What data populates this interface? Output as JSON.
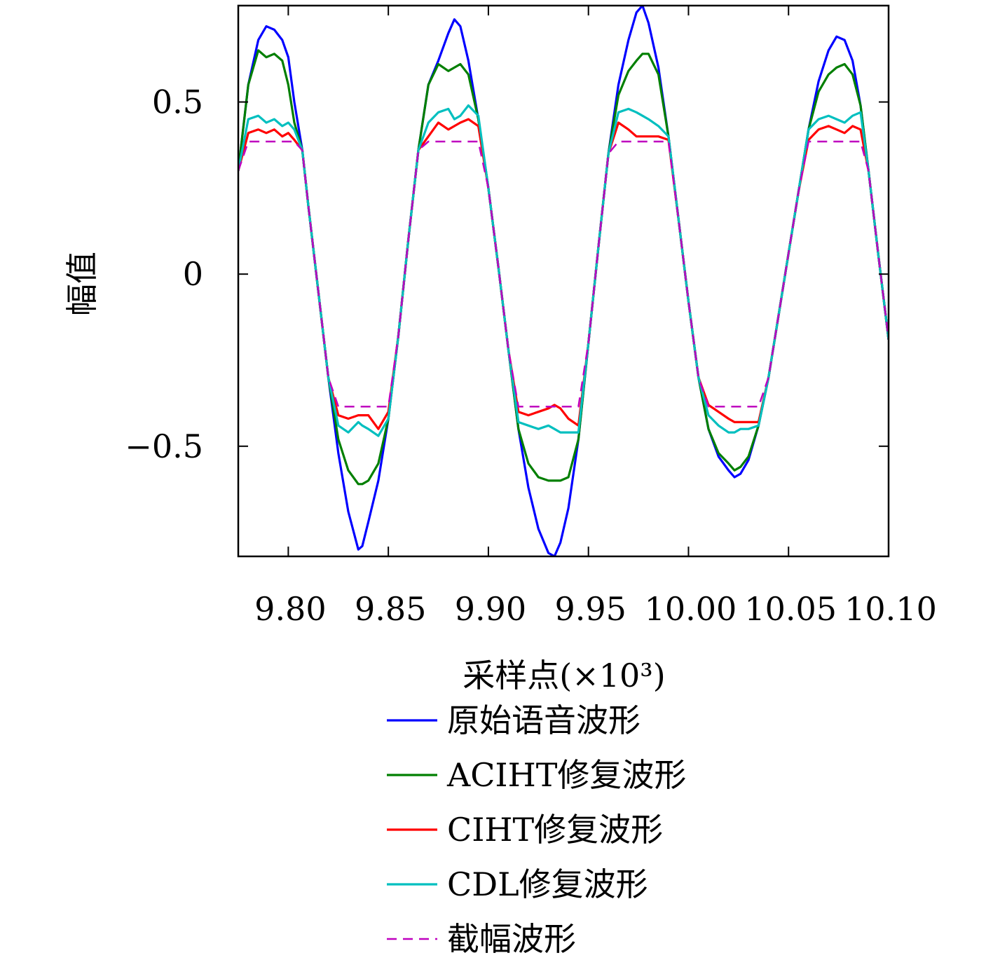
{
  "chart_data": {
    "type": "line",
    "title": "",
    "xlabel": "采样点(×10³)",
    "ylabel": "幅值",
    "xlim": [
      9.775,
      10.1
    ],
    "ylim": [
      -0.82,
      0.78
    ],
    "xticks": [
      "9.80",
      "9.85",
      "9.90",
      "9.95",
      "10.00",
      "10.05",
      "10.10"
    ],
    "xtick_values": [
      9.8,
      9.85,
      9.9,
      9.95,
      10.0,
      10.05,
      10.1
    ],
    "yticks": [
      "−0.5",
      "0",
      "0.5"
    ],
    "ytick_values": [
      -0.5,
      0,
      0.5
    ],
    "grid": false,
    "legend_position": "below",
    "clip_level": 0.385,
    "series": [
      {
        "name": "原始语音波形",
        "color": "#0000ff",
        "style": "solid",
        "x": [
          9.775,
          9.78,
          9.785,
          9.789,
          9.793,
          9.797,
          9.8,
          9.803,
          9.807,
          9.81,
          9.815,
          9.82,
          9.825,
          9.83,
          9.835,
          9.837,
          9.84,
          9.845,
          9.85,
          9.855,
          9.86,
          9.865,
          9.87,
          9.875,
          9.88,
          9.883,
          9.886,
          9.89,
          9.895,
          9.9,
          9.905,
          9.91,
          9.915,
          9.92,
          9.925,
          9.93,
          9.933,
          9.936,
          9.94,
          9.945,
          9.95,
          9.955,
          9.96,
          9.965,
          9.97,
          9.974,
          9.977,
          9.98,
          9.985,
          9.99,
          9.995,
          10.0,
          10.005,
          10.01,
          10.015,
          10.02,
          10.023,
          10.026,
          10.03,
          10.035,
          10.04,
          10.045,
          10.05,
          10.055,
          10.06,
          10.065,
          10.07,
          10.074,
          10.078,
          10.082,
          10.086,
          10.09,
          10.095,
          10.1
        ],
        "y": [
          0.3,
          0.55,
          0.68,
          0.72,
          0.71,
          0.68,
          0.63,
          0.5,
          0.36,
          0.2,
          -0.05,
          -0.3,
          -0.52,
          -0.69,
          -0.8,
          -0.79,
          -0.72,
          -0.6,
          -0.42,
          -0.18,
          0.1,
          0.36,
          0.55,
          0.62,
          0.7,
          0.74,
          0.72,
          0.62,
          0.45,
          0.25,
          0.02,
          -0.22,
          -0.45,
          -0.62,
          -0.74,
          -0.81,
          -0.82,
          -0.78,
          -0.68,
          -0.48,
          -0.2,
          0.08,
          0.35,
          0.55,
          0.68,
          0.76,
          0.78,
          0.73,
          0.6,
          0.4,
          0.16,
          -0.08,
          -0.3,
          -0.45,
          -0.53,
          -0.57,
          -0.59,
          -0.58,
          -0.54,
          -0.44,
          -0.3,
          -0.12,
          0.06,
          0.24,
          0.42,
          0.56,
          0.65,
          0.69,
          0.68,
          0.62,
          0.49,
          0.3,
          0.05,
          -0.19
        ]
      },
      {
        "name": "ACIHT修复波形",
        "color": "#007f00",
        "style": "solid",
        "x": [
          9.775,
          9.78,
          9.785,
          9.789,
          9.793,
          9.797,
          9.8,
          9.803,
          9.807,
          9.81,
          9.815,
          9.82,
          9.825,
          9.83,
          9.835,
          9.837,
          9.84,
          9.845,
          9.85,
          9.855,
          9.86,
          9.865,
          9.87,
          9.875,
          9.88,
          9.883,
          9.886,
          9.89,
          9.895,
          9.9,
          9.905,
          9.91,
          9.915,
          9.92,
          9.925,
          9.93,
          9.933,
          9.936,
          9.94,
          9.945,
          9.95,
          9.955,
          9.96,
          9.965,
          9.97,
          9.974,
          9.977,
          9.98,
          9.985,
          9.99,
          9.995,
          10.0,
          10.005,
          10.01,
          10.015,
          10.02,
          10.023,
          10.026,
          10.03,
          10.035,
          10.04,
          10.045,
          10.05,
          10.055,
          10.06,
          10.065,
          10.07,
          10.074,
          10.078,
          10.082,
          10.086,
          10.09,
          10.095,
          10.1
        ],
        "y": [
          0.3,
          0.55,
          0.65,
          0.63,
          0.64,
          0.62,
          0.55,
          0.44,
          0.36,
          0.2,
          -0.05,
          -0.3,
          -0.48,
          -0.57,
          -0.61,
          -0.61,
          -0.6,
          -0.55,
          -0.42,
          -0.18,
          0.1,
          0.36,
          0.55,
          0.61,
          0.59,
          0.6,
          0.61,
          0.58,
          0.45,
          0.25,
          0.02,
          -0.22,
          -0.45,
          -0.55,
          -0.59,
          -0.6,
          -0.6,
          -0.6,
          -0.59,
          -0.48,
          -0.2,
          0.08,
          0.35,
          0.52,
          0.59,
          0.62,
          0.64,
          0.64,
          0.58,
          0.4,
          0.16,
          -0.08,
          -0.3,
          -0.45,
          -0.52,
          -0.55,
          -0.57,
          -0.56,
          -0.53,
          -0.44,
          -0.3,
          -0.12,
          0.06,
          0.24,
          0.42,
          0.53,
          0.58,
          0.6,
          0.61,
          0.58,
          0.49,
          0.3,
          0.05,
          -0.19
        ]
      },
      {
        "name": "CIHT修复波形",
        "color": "#ff0000",
        "style": "solid",
        "x": [
          9.775,
          9.78,
          9.785,
          9.789,
          9.793,
          9.797,
          9.8,
          9.803,
          9.807,
          9.81,
          9.815,
          9.82,
          9.825,
          9.83,
          9.835,
          9.837,
          9.84,
          9.845,
          9.85,
          9.855,
          9.86,
          9.865,
          9.87,
          9.875,
          9.88,
          9.883,
          9.886,
          9.89,
          9.895,
          9.9,
          9.905,
          9.91,
          9.915,
          9.92,
          9.925,
          9.93,
          9.933,
          9.936,
          9.94,
          9.945,
          9.95,
          9.955,
          9.96,
          9.965,
          9.97,
          9.974,
          9.977,
          9.98,
          9.985,
          9.99,
          9.995,
          10.0,
          10.005,
          10.01,
          10.015,
          10.02,
          10.023,
          10.026,
          10.03,
          10.035,
          10.04,
          10.045,
          10.05,
          10.055,
          10.06,
          10.065,
          10.07,
          10.074,
          10.078,
          10.082,
          10.086,
          10.09,
          10.095,
          10.1
        ],
        "y": [
          0.3,
          0.41,
          0.42,
          0.41,
          0.42,
          0.4,
          0.41,
          0.39,
          0.36,
          0.2,
          -0.05,
          -0.3,
          -0.41,
          -0.42,
          -0.41,
          -0.41,
          -0.41,
          -0.45,
          -0.4,
          -0.18,
          0.1,
          0.36,
          0.4,
          0.44,
          0.42,
          0.43,
          0.44,
          0.45,
          0.43,
          0.25,
          0.02,
          -0.22,
          -0.4,
          -0.41,
          -0.4,
          -0.39,
          -0.38,
          -0.39,
          -0.42,
          -0.44,
          -0.2,
          0.08,
          0.35,
          0.44,
          0.42,
          0.4,
          0.4,
          0.4,
          0.4,
          0.39,
          0.16,
          -0.08,
          -0.3,
          -0.38,
          -0.4,
          -0.42,
          -0.43,
          -0.43,
          -0.43,
          -0.43,
          -0.3,
          -0.12,
          0.06,
          0.24,
          0.39,
          0.42,
          0.43,
          0.42,
          0.41,
          0.43,
          0.42,
          0.3,
          0.05,
          -0.19
        ]
      },
      {
        "name": "CDL修复波形",
        "color": "#00bfbf",
        "style": "solid",
        "x": [
          9.775,
          9.78,
          9.785,
          9.789,
          9.793,
          9.797,
          9.8,
          9.803,
          9.807,
          9.81,
          9.815,
          9.82,
          9.825,
          9.83,
          9.835,
          9.837,
          9.84,
          9.845,
          9.85,
          9.855,
          9.86,
          9.865,
          9.87,
          9.875,
          9.88,
          9.883,
          9.886,
          9.89,
          9.895,
          9.9,
          9.905,
          9.91,
          9.915,
          9.92,
          9.925,
          9.93,
          9.933,
          9.936,
          9.94,
          9.945,
          9.95,
          9.955,
          9.96,
          9.965,
          9.97,
          9.974,
          9.977,
          9.98,
          9.985,
          9.99,
          9.995,
          10.0,
          10.005,
          10.01,
          10.015,
          10.02,
          10.023,
          10.026,
          10.03,
          10.035,
          10.04,
          10.045,
          10.05,
          10.055,
          10.06,
          10.065,
          10.07,
          10.074,
          10.078,
          10.082,
          10.086,
          10.09,
          10.095,
          10.1
        ],
        "y": [
          0.3,
          0.45,
          0.46,
          0.44,
          0.45,
          0.43,
          0.44,
          0.42,
          0.36,
          0.2,
          -0.05,
          -0.3,
          -0.44,
          -0.46,
          -0.43,
          -0.44,
          -0.45,
          -0.47,
          -0.42,
          -0.18,
          0.1,
          0.36,
          0.44,
          0.47,
          0.48,
          0.45,
          0.46,
          0.49,
          0.46,
          0.25,
          0.02,
          -0.22,
          -0.43,
          -0.44,
          -0.45,
          -0.44,
          -0.45,
          -0.46,
          -0.46,
          -0.46,
          -0.2,
          0.08,
          0.35,
          0.47,
          0.48,
          0.47,
          0.46,
          0.45,
          0.43,
          0.4,
          0.16,
          -0.08,
          -0.3,
          -0.41,
          -0.44,
          -0.46,
          -0.46,
          -0.45,
          -0.45,
          -0.44,
          -0.3,
          -0.12,
          0.06,
          0.24,
          0.42,
          0.45,
          0.46,
          0.45,
          0.44,
          0.46,
          0.47,
          0.3,
          0.05,
          -0.19
        ]
      },
      {
        "name": "截幅波形",
        "color": "#bf00bf",
        "style": "dashed",
        "x": [
          9.775,
          9.78,
          9.785,
          9.789,
          9.793,
          9.797,
          9.8,
          9.803,
          9.807,
          9.81,
          9.815,
          9.82,
          9.825,
          9.83,
          9.835,
          9.837,
          9.84,
          9.845,
          9.85,
          9.855,
          9.86,
          9.865,
          9.87,
          9.875,
          9.88,
          9.883,
          9.886,
          9.89,
          9.895,
          9.9,
          9.905,
          9.91,
          9.915,
          9.92,
          9.925,
          9.93,
          9.933,
          9.936,
          9.94,
          9.945,
          9.95,
          9.955,
          9.96,
          9.965,
          9.97,
          9.974,
          9.977,
          9.98,
          9.985,
          9.99,
          9.995,
          10.0,
          10.005,
          10.01,
          10.015,
          10.02,
          10.023,
          10.026,
          10.03,
          10.035,
          10.04,
          10.045,
          10.05,
          10.055,
          10.06,
          10.065,
          10.07,
          10.074,
          10.078,
          10.082,
          10.086,
          10.09,
          10.095,
          10.1
        ],
        "y": [
          0.3,
          0.385,
          0.385,
          0.385,
          0.385,
          0.385,
          0.385,
          0.385,
          0.36,
          0.2,
          -0.05,
          -0.3,
          -0.385,
          -0.385,
          -0.385,
          -0.385,
          -0.385,
          -0.385,
          -0.385,
          -0.18,
          0.1,
          0.36,
          0.385,
          0.385,
          0.385,
          0.385,
          0.385,
          0.385,
          0.385,
          0.25,
          0.02,
          -0.22,
          -0.385,
          -0.385,
          -0.385,
          -0.385,
          -0.385,
          -0.385,
          -0.385,
          -0.385,
          -0.2,
          0.08,
          0.35,
          0.385,
          0.385,
          0.385,
          0.385,
          0.385,
          0.385,
          0.385,
          0.16,
          -0.08,
          -0.3,
          -0.385,
          -0.385,
          -0.385,
          -0.385,
          -0.385,
          -0.385,
          -0.385,
          -0.3,
          -0.12,
          0.06,
          0.24,
          0.385,
          0.385,
          0.385,
          0.385,
          0.385,
          0.385,
          0.385,
          0.3,
          0.05,
          -0.19
        ]
      }
    ]
  }
}
